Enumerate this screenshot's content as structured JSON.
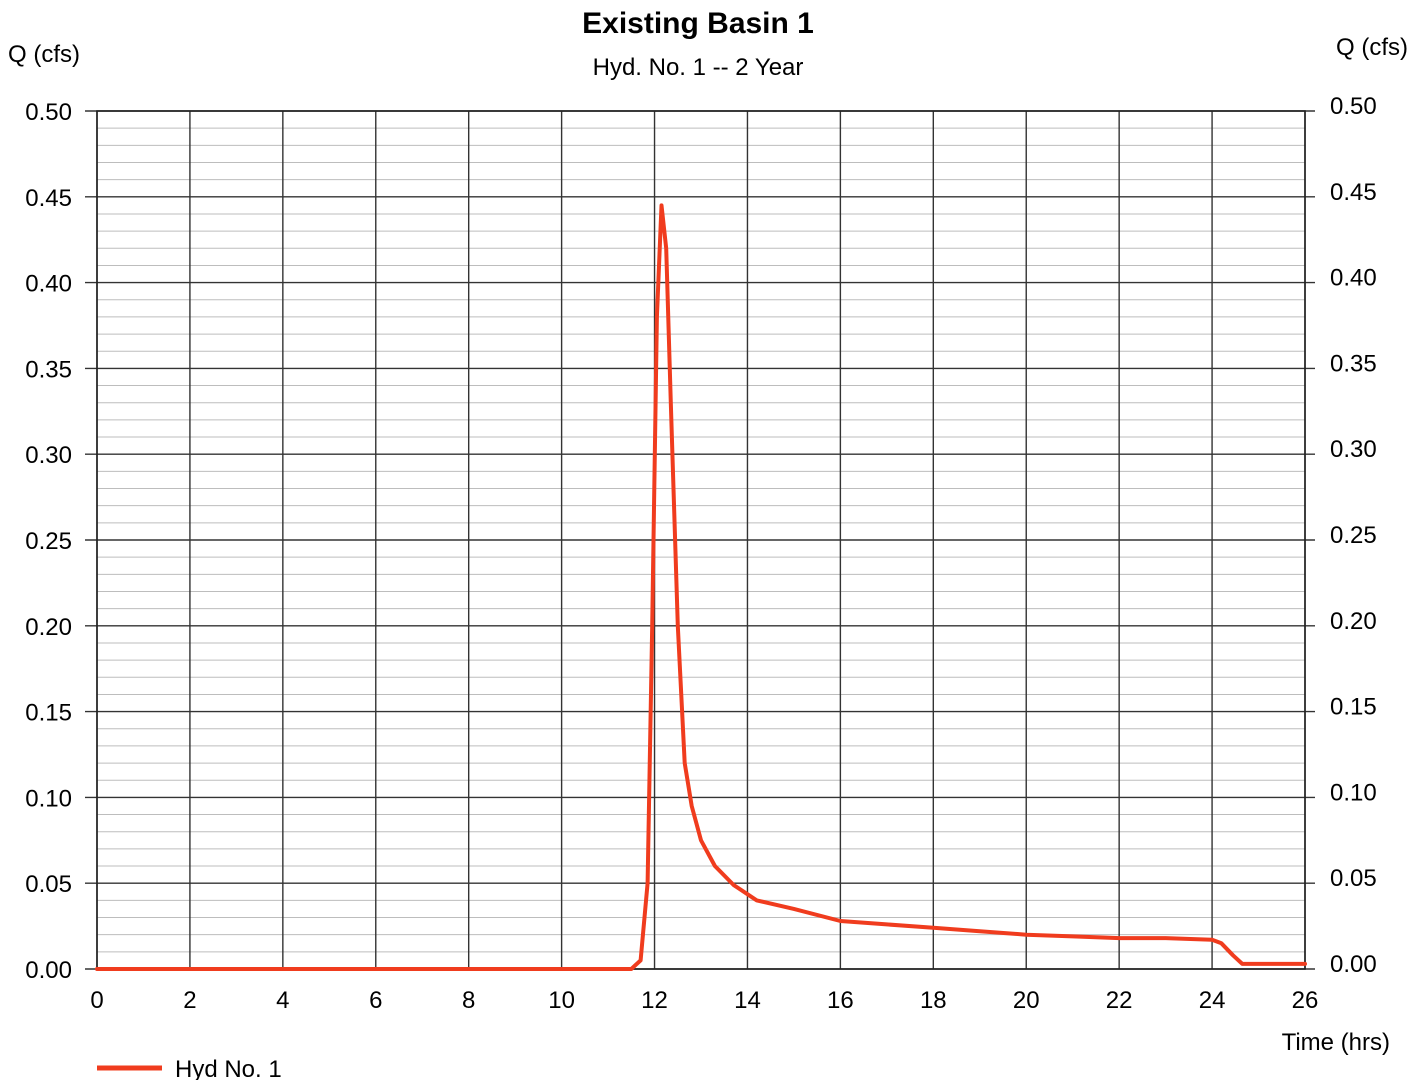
{
  "chart_data": {
    "type": "line",
    "title": "Existing Basin 1",
    "subtitle": "Hyd. No. 1 -- 2 Year",
    "ylabel_left": "Q (cfs)",
    "ylabel_right": "Q (cfs)",
    "xlabel": "Time (hrs)",
    "xlim": [
      0,
      26
    ],
    "ylim": [
      0,
      0.5
    ],
    "x_ticks": [
      0,
      2,
      4,
      6,
      8,
      10,
      12,
      14,
      16,
      18,
      20,
      22,
      24,
      26
    ],
    "y_ticks": [
      0.0,
      0.05,
      0.1,
      0.15,
      0.2,
      0.25,
      0.3,
      0.35,
      0.4,
      0.45,
      0.5
    ],
    "y_tick_labels": [
      "0.00",
      "0.05",
      "0.10",
      "0.15",
      "0.20",
      "0.25",
      "0.30",
      "0.35",
      "0.40",
      "0.45",
      "0.50"
    ],
    "x_tick_labels": [
      "0",
      "2",
      "4",
      "6",
      "8",
      "10",
      "12",
      "14",
      "16",
      "18",
      "20",
      "22",
      "24",
      "26"
    ],
    "grid": true,
    "minor_y_grid_step": 0.01,
    "legend_placement": "bottom-left",
    "series": [
      {
        "name": "Hyd No. 1",
        "color": "#f03c1e",
        "x": [
          0,
          11.5,
          11.7,
          11.85,
          11.95,
          12.05,
          12.15,
          12.25,
          12.35,
          12.5,
          12.65,
          12.8,
          13.0,
          13.3,
          13.7,
          14.2,
          15.0,
          16.0,
          17.0,
          18.0,
          19.0,
          20.0,
          21.0,
          22.0,
          23.0,
          24.0,
          24.2,
          24.45,
          24.65,
          25.0,
          26.0
        ],
        "y": [
          0.0,
          0.0,
          0.005,
          0.05,
          0.2,
          0.38,
          0.445,
          0.42,
          0.33,
          0.2,
          0.12,
          0.095,
          0.075,
          0.06,
          0.049,
          0.04,
          0.035,
          0.028,
          0.026,
          0.024,
          0.022,
          0.02,
          0.019,
          0.018,
          0.018,
          0.017,
          0.015,
          0.008,
          0.003,
          0.003,
          0.003
        ]
      }
    ]
  }
}
